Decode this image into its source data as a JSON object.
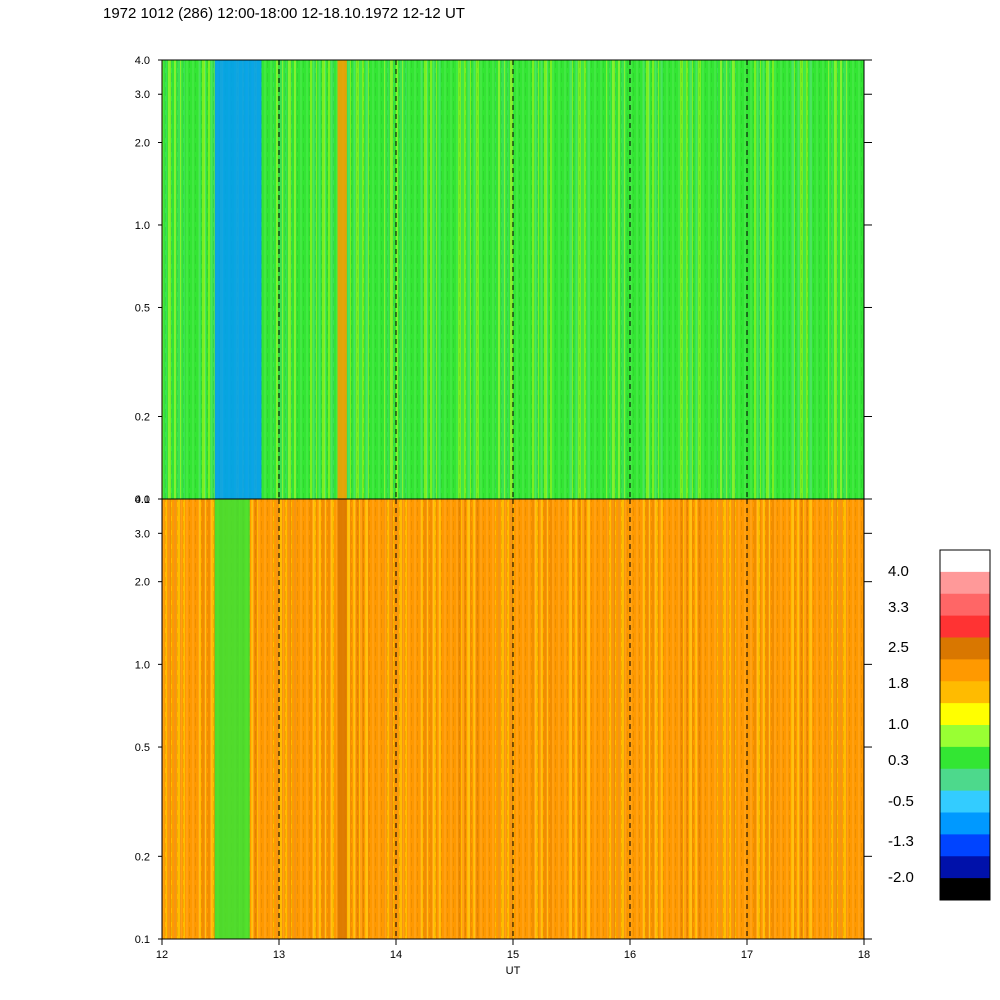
{
  "title": "1972 1012 (286) 12:00-18:00 12-18.10.1972  12-12 UT",
  "chart_data": [
    {
      "type": "heatmap",
      "panel": "upper",
      "x_range": [
        12,
        18
      ],
      "y_range": [
        0.1,
        4.0
      ],
      "y_scale": "log",
      "y_ticks": [
        "0.1",
        "0.2",
        "0.5",
        "1.0",
        "2.0",
        "3.0",
        "4.0"
      ],
      "y_tick_values": [
        0.1,
        0.2,
        0.5,
        1.0,
        2.0,
        3.0,
        4.0
      ],
      "dominant_level": 0.3,
      "features": [
        {
          "x_start": 12.45,
          "x_end": 12.85,
          "level": -1.3,
          "note_visible": false
        },
        {
          "x_start": 13.5,
          "x_end": 13.58,
          "level": 1.8
        }
      ]
    },
    {
      "type": "heatmap",
      "panel": "lower",
      "x_range": [
        12,
        18
      ],
      "y_range": [
        0.1,
        4.0
      ],
      "y_scale": "log",
      "y_ticks": [
        "0.1",
        "0.2",
        "0.5",
        "1.0",
        "2.0",
        "3.0",
        "4.0"
      ],
      "y_tick_values": [
        0.1,
        0.2,
        0.5,
        1.0,
        2.0,
        3.0,
        4.0
      ],
      "dominant_level": 1.8,
      "features": [
        {
          "x_start": 12.45,
          "x_end": 12.75,
          "level": 0.3
        },
        {
          "x_start": 13.5,
          "x_end": 13.58,
          "level": 2.5
        }
      ]
    }
  ],
  "x_axis": {
    "label": "UT",
    "ticks": [
      "12",
      "13",
      "14",
      "15",
      "16",
      "17",
      "18"
    ],
    "tick_values": [
      12,
      13,
      14,
      15,
      16,
      17,
      18
    ],
    "dashed_gridlines_at": [
      13,
      14,
      15,
      16,
      17
    ]
  },
  "colorbar": {
    "labels": [
      "4.0",
      "3.3",
      "2.5",
      "1.8",
      "1.0",
      "0.3",
      "-0.5",
      "-1.3",
      "-2.0"
    ],
    "label_values": [
      4.0,
      3.3,
      2.5,
      1.8,
      1.0,
      0.3,
      -0.5,
      -1.3,
      -2.0
    ],
    "colors_top_to_bottom": [
      "#ffffff",
      "#ff9999",
      "#ff6666",
      "#ff3333",
      "#d97700",
      "#ff9900",
      "#ffbb00",
      "#ffff00",
      "#99ff33",
      "#33e633",
      "#4dd98c",
      "#33ccff",
      "#0099ff",
      "#0044ff",
      "#0011aa",
      "#000000"
    ]
  }
}
